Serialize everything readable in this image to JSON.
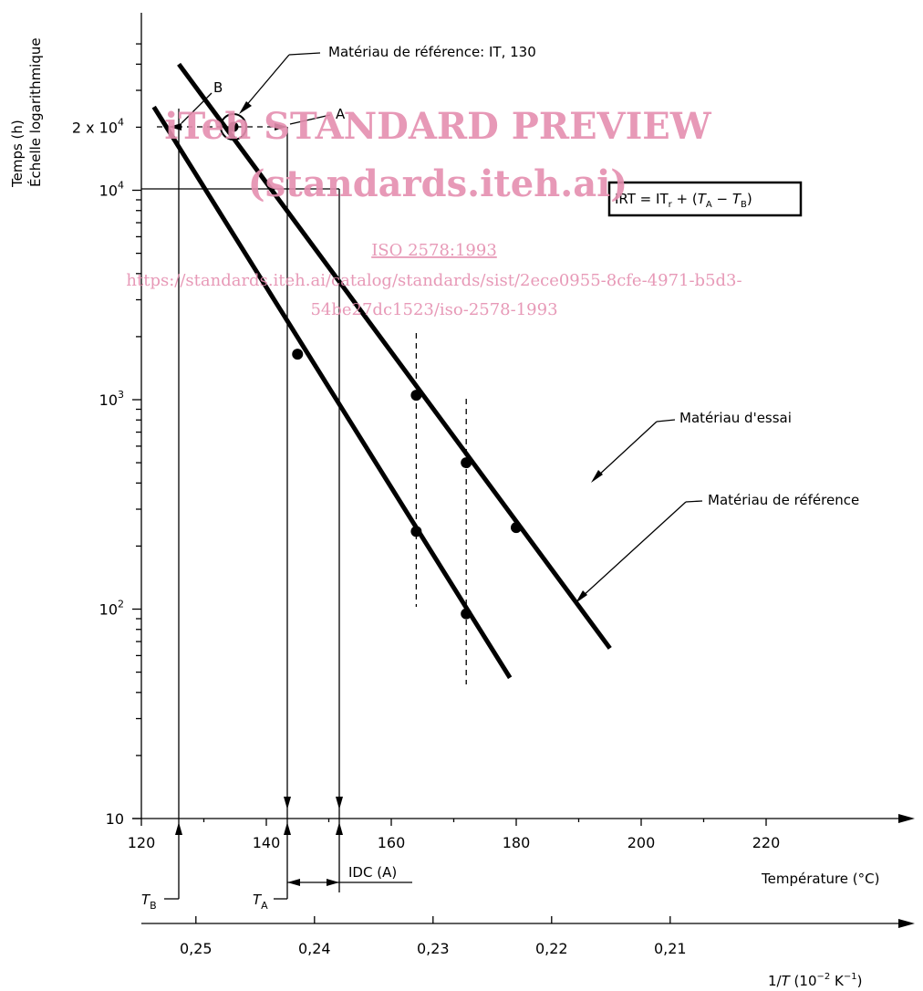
{
  "chart_data": {
    "type": "line",
    "ylabel_line1": "Temps (h)",
    "ylabel_line2": "Échelle logarithmique",
    "xlabel_temp": "Température (°C)",
    "xlabel_recip_main": "1/",
    "xlabel_recip_var": "T",
    "xlabel_recip_unit": " (10",
    "xlabel_recip_exp": "−2",
    "xlabel_recip_end": " K",
    "xlabel_recip_exp2": "−1",
    "xlabel_recip_close": ")",
    "xlim_c": [
      118,
      228
    ],
    "ylim": [
      10,
      50000
    ],
    "y_scale": "log",
    "x_ticks_c": [
      120,
      140,
      160,
      180,
      200,
      220
    ],
    "x_tick_labels_c": [
      "120",
      "140",
      "160",
      "180",
      "200",
      "220"
    ],
    "x_ticks_recip": [
      0.25,
      0.24,
      0.23,
      0.22,
      0.21
    ],
    "x_tick_labels_recip": [
      "0,25",
      "0,24",
      "0,23",
      "0,22",
      "0,21"
    ],
    "y_ticks": [
      10,
      100,
      1000,
      10000,
      20000
    ],
    "y_tick_labels": [
      {
        "base": "10",
        "exp": ""
      },
      {
        "base": "10",
        "exp": "2"
      },
      {
        "base": "10",
        "exp": "3"
      },
      {
        "base": "10",
        "exp": "4"
      },
      {
        "base": "2 x 10",
        "exp": "4"
      }
    ],
    "series": [
      {
        "name": "Matériau d'essai",
        "line": [
          [
            126,
            40000
          ],
          [
            195,
            65
          ]
        ],
        "points": [
          [
            164,
            1050
          ],
          [
            172,
            500
          ],
          [
            180,
            245
          ]
        ]
      },
      {
        "name": "Matériau de référence",
        "line": [
          [
            122,
            25000
          ],
          [
            179,
            47
          ]
        ],
        "points": [
          [
            145,
            1650
          ],
          [
            164,
            235
          ],
          [
            172,
            95
          ]
        ]
      }
    ],
    "reference_point": {
      "temp_c": 130,
      "time_h": 20000,
      "label": "Matériau de référence: IT, 130"
    },
    "vertical_dashed_c": [
      164,
      172
    ],
    "marker_labels": {
      "A": "A",
      "B": "B",
      "TA": "T",
      "TA_sub": "A",
      "TB": "T",
      "TB_sub": "B",
      "IDC": "IDC (A)"
    },
    "formula": {
      "p1": "IRT = IT",
      "p1_sub": "r",
      "p2": " + (",
      "ta": "T",
      "ta_sub": "A",
      "p3": " − ",
      "tb": "T",
      "tb_sub": "B",
      "p4": ")"
    }
  },
  "watermark": {
    "line1": "iTeh STANDARD PREVIEW",
    "line2": "(standards.iteh.ai)",
    "line3": "ISO 2578:1993",
    "line4": "https://standards.iteh.ai/catalog/standards/sist/2ece0955-8cfe-4971-b5d3-",
    "line5": "54be27dc1523/iso-2578-1993"
  }
}
